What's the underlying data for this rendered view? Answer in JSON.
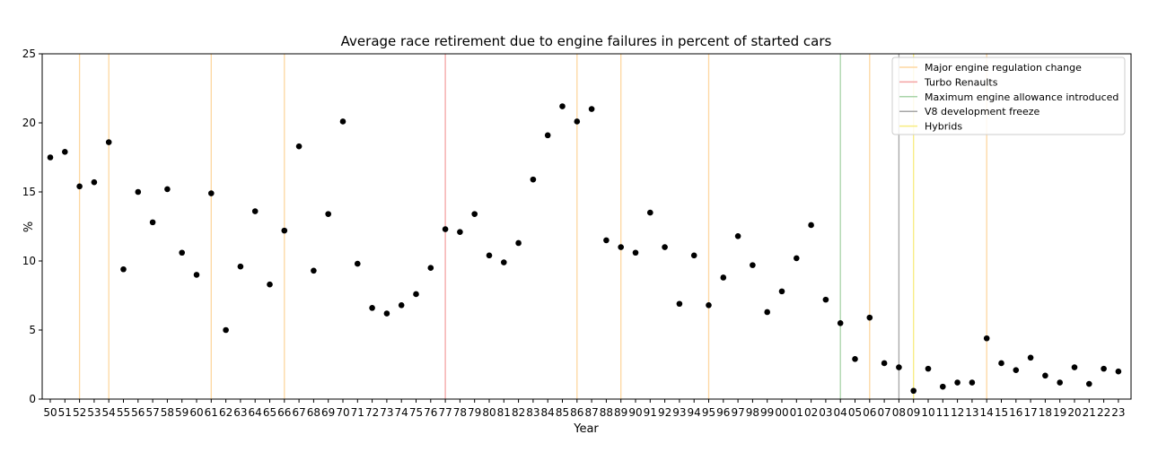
{
  "chart_data": {
    "type": "scatter",
    "title": "Average race retirement due to engine failures in percent of started cars",
    "xlabel": "Year",
    "ylabel": "%",
    "ylim": [
      0,
      25
    ],
    "y_ticks": [
      0,
      5,
      10,
      15,
      20,
      25
    ],
    "x_ticks": [
      "50",
      "51",
      "52",
      "53",
      "54",
      "55",
      "56",
      "57",
      "58",
      "59",
      "60",
      "61",
      "62",
      "63",
      "64",
      "65",
      "66",
      "67",
      "68",
      "69",
      "70",
      "71",
      "72",
      "73",
      "74",
      "75",
      "76",
      "77",
      "78",
      "79",
      "80",
      "81",
      "82",
      "83",
      "84",
      "85",
      "86",
      "87",
      "88",
      "89",
      "90",
      "91",
      "92",
      "93",
      "94",
      "95",
      "96",
      "97",
      "98",
      "99",
      "00",
      "01",
      "02",
      "03",
      "04",
      "05",
      "06",
      "07",
      "08",
      "09",
      "10",
      "11",
      "12",
      "13",
      "14",
      "15",
      "16",
      "17",
      "18",
      "19",
      "20",
      "21",
      "22",
      "23"
    ],
    "grid": false,
    "legend_placement": "top-right",
    "point_color": "#000000",
    "series": [
      {
        "x": [
          1950,
          1951,
          1952,
          1953,
          1954,
          1955,
          1956,
          1957,
          1958,
          1959,
          1960,
          1961,
          1962,
          1963,
          1964,
          1965,
          1966,
          1967,
          1968,
          1969,
          1970,
          1971,
          1972,
          1973,
          1974,
          1975,
          1976,
          1977,
          1978,
          1979,
          1980,
          1981,
          1982,
          1983,
          1984,
          1985,
          1986,
          1987,
          1988,
          1989,
          1990,
          1991,
          1992,
          1993,
          1994,
          1995,
          1996,
          1997,
          1998,
          1999,
          2000,
          2001,
          2002,
          2003,
          2004,
          2005,
          2006,
          2007,
          2008,
          2009,
          2010,
          2011,
          2012,
          2013,
          2014,
          2015,
          2016,
          2017,
          2018,
          2019,
          2020,
          2021,
          2022,
          2023
        ],
        "y": [
          17.5,
          17.9,
          15.4,
          15.7,
          18.6,
          9.4,
          15.0,
          12.8,
          15.2,
          10.6,
          9.0,
          14.9,
          5.0,
          9.6,
          13.6,
          8.3,
          12.2,
          18.3,
          9.3,
          13.4,
          20.1,
          9.8,
          6.6,
          6.2,
          6.8,
          7.6,
          9.5,
          12.3,
          12.1,
          13.4,
          10.4,
          9.9,
          11.3,
          15.9,
          19.1,
          21.2,
          20.1,
          21.0,
          11.5,
          11.0,
          10.6,
          13.5,
          11.0,
          6.9,
          10.4,
          6.8,
          8.8,
          11.8,
          9.7,
          6.3,
          7.8,
          10.2,
          12.6,
          7.2,
          5.5,
          2.9,
          5.9,
          2.6,
          2.3,
          0.6,
          2.2,
          0.9,
          1.2,
          1.2,
          4.4,
          2.6,
          2.1,
          3.0,
          1.7,
          1.2,
          2.3,
          1.1,
          2.2,
          2.0
        ]
      }
    ],
    "vertical_lines": [
      {
        "group": "Major engine regulation change",
        "x": [
          1952,
          1954,
          1961,
          1966,
          1986,
          1989,
          1995,
          2006,
          2014
        ],
        "color": "#fdd7a0"
      },
      {
        "group": "Turbo Renaults",
        "x": [
          1977
        ],
        "color": "#f4a3a3"
      },
      {
        "group": "Maximum engine allowance introduced",
        "x": [
          2004
        ],
        "color": "#a8d4a8"
      },
      {
        "group": "V8 development freeze",
        "x": [
          2008
        ],
        "color": "#a6a6a6"
      },
      {
        "group": "Hybrids",
        "x": [
          2009
        ],
        "color": "#f8ec80"
      }
    ],
    "legend": [
      {
        "label": "Major engine regulation change",
        "color": "#fdd7a0"
      },
      {
        "label": "Turbo Renaults",
        "color": "#f4a3a3"
      },
      {
        "label": "Maximum engine allowance introduced",
        "color": "#a8d4a8"
      },
      {
        "label": "V8 development freeze",
        "color": "#a6a6a6"
      },
      {
        "label": "Hybrids",
        "color": "#f8ec80"
      }
    ]
  }
}
